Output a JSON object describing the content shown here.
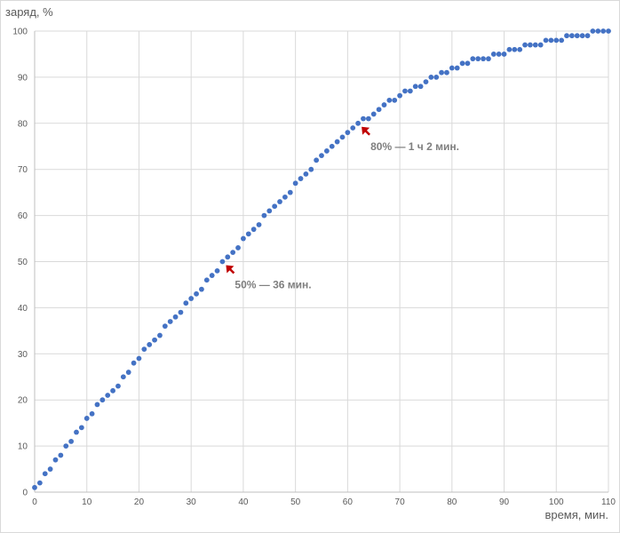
{
  "chart_data": {
    "type": "scatter",
    "title": "",
    "xlabel": "время, мин.",
    "ylabel": "заряд, %",
    "xlim": [
      0,
      110
    ],
    "ylim": [
      0,
      100
    ],
    "xticks": [
      0,
      10,
      20,
      30,
      40,
      50,
      60,
      70,
      80,
      90,
      100,
      110
    ],
    "yticks": [
      0,
      10,
      20,
      30,
      40,
      50,
      60,
      70,
      80,
      90,
      100
    ],
    "grid": true,
    "legend": "none",
    "marker_color": "#4472c4",
    "arrow_color": "#c00000",
    "x": [
      0,
      1,
      2,
      3,
      4,
      5,
      6,
      7,
      8,
      9,
      10,
      11,
      12,
      13,
      14,
      15,
      16,
      17,
      18,
      19,
      20,
      21,
      22,
      23,
      24,
      25,
      26,
      27,
      28,
      29,
      30,
      31,
      32,
      33,
      34,
      35,
      36,
      37,
      38,
      39,
      40,
      41,
      42,
      43,
      44,
      45,
      46,
      47,
      48,
      49,
      50,
      51,
      52,
      53,
      54,
      55,
      56,
      57,
      58,
      59,
      60,
      61,
      62,
      63,
      64,
      65,
      66,
      67,
      68,
      69,
      70,
      71,
      72,
      73,
      74,
      75,
      76,
      77,
      78,
      79,
      80,
      81,
      82,
      83,
      84,
      85,
      86,
      87,
      88,
      89,
      90,
      91,
      92,
      93,
      94,
      95,
      96,
      97,
      98,
      99,
      100,
      101,
      102,
      103,
      104,
      105,
      106,
      107,
      108,
      109,
      110
    ],
    "y": [
      1,
      2,
      4,
      5,
      7,
      8,
      10,
      11,
      13,
      14,
      16,
      17,
      19,
      20,
      21,
      22,
      23,
      25,
      26,
      28,
      29,
      31,
      32,
      33,
      34,
      36,
      37,
      38,
      39,
      41,
      42,
      43,
      44,
      46,
      47,
      48,
      50,
      51,
      52,
      53,
      55,
      56,
      57,
      58,
      60,
      61,
      62,
      63,
      64,
      65,
      67,
      68,
      69,
      70,
      72,
      73,
      74,
      75,
      76,
      77,
      78,
      79,
      80,
      81,
      81,
      82,
      83,
      84,
      85,
      85,
      86,
      87,
      87,
      88,
      88,
      89,
      90,
      90,
      91,
      91,
      92,
      92,
      93,
      93,
      94,
      94,
      94,
      94,
      95,
      95,
      95,
      96,
      96,
      96,
      97,
      97,
      97,
      97,
      98,
      98,
      98,
      98,
      99,
      99,
      99,
      99,
      99,
      100,
      100,
      100,
      100
    ],
    "annotations": [
      {
        "text": "50% — 36 мин.",
        "x": 36,
        "y": 50
      },
      {
        "text": "80% — 1 ч 2 мин.",
        "x": 62,
        "y": 80
      }
    ]
  }
}
